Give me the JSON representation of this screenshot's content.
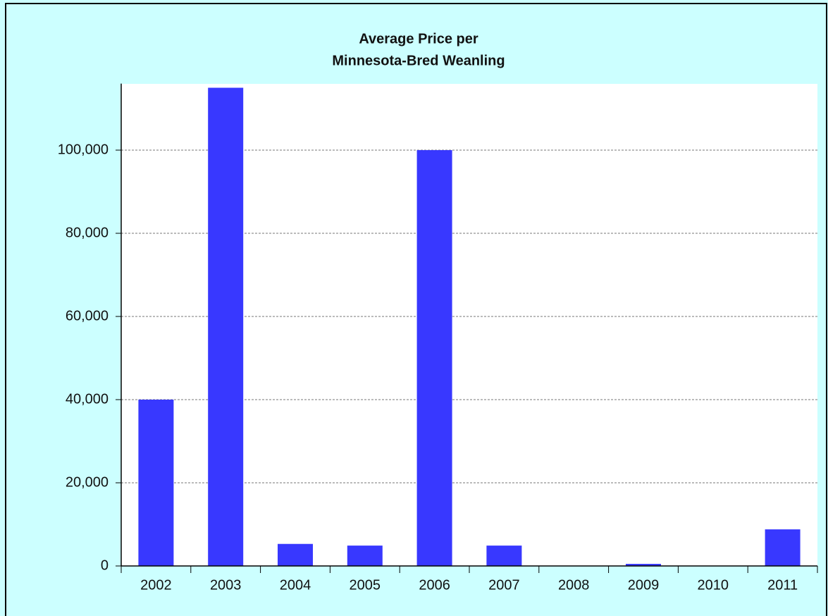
{
  "chart_data": {
    "type": "bar",
    "title": [
      "Average Price per",
      "Minnesota-Bred Weanling"
    ],
    "categories": [
      "2002",
      "2003",
      "2004",
      "2005",
      "2006",
      "2007",
      "2008",
      "2009",
      "2010",
      "2011"
    ],
    "values": [
      40000,
      115000,
      5300,
      4900,
      100000,
      4900,
      0,
      500,
      0,
      8800
    ],
    "color": "#3838ff",
    "ylim": [
      0,
      116000
    ],
    "yticks": [
      0,
      {
        "value": 20000,
        "label": "20,000"
      },
      {
        "value": 40000,
        "label": "40,000"
      },
      {
        "value": 60000,
        "label": "60,000"
      },
      {
        "value": 80000,
        "label": "80,000"
      },
      {
        "value": 100000,
        "label": "100,000"
      }
    ],
    "grid": true
  }
}
